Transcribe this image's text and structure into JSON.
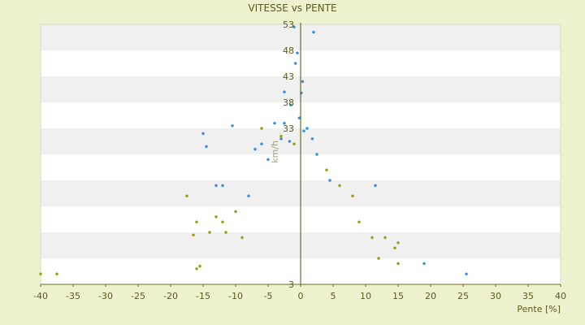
{
  "chart_data": {
    "type": "scatter",
    "title": "VITESSE vs PENTE",
    "xlabel": "Pente [%]",
    "ylabel": "km/h",
    "xlim": [
      -40,
      40
    ],
    "ylim": [
      3,
      53
    ],
    "xticks": [
      -40,
      -35,
      -30,
      -25,
      -20,
      -15,
      -10,
      -5,
      0,
      5,
      10,
      15,
      20,
      25,
      30,
      35,
      40
    ],
    "yticks": [
      3,
      8,
      13,
      18,
      23,
      28,
      33,
      38,
      43,
      48,
      53
    ],
    "ytick_labels": [
      "3",
      "",
      "",
      "",
      "",
      "",
      "33",
      "38",
      "43",
      "48",
      "53"
    ],
    "grid": "horizontal alternating bands",
    "legend": "none",
    "colors": {
      "background": "#eef2cf",
      "plot_band_light": "#ffffff",
      "plot_band_dark": "#f0f0f0",
      "series_blue": "#3b8fd9",
      "series_olive": "#9aa010",
      "axis": "#6b6b2a",
      "text": "#5a5a1a"
    },
    "series": [
      {
        "color": "#3b8fd9",
        "points": [
          [
            -1,
            52.5
          ],
          [
            2,
            51.5
          ],
          [
            -0.5,
            47.5
          ],
          [
            -0.8,
            45.5
          ],
          [
            0.3,
            42
          ],
          [
            0.1,
            39.8
          ],
          [
            -2.5,
            40
          ],
          [
            -10.5,
            33.5
          ],
          [
            -15,
            32
          ],
          [
            -14.5,
            29.5
          ],
          [
            -1.5,
            37.5
          ],
          [
            -0.2,
            35
          ],
          [
            -2.5,
            34
          ],
          [
            1,
            33
          ],
          [
            19,
            7
          ],
          [
            25.5,
            5
          ],
          [
            -4,
            34
          ],
          [
            4.5,
            23
          ],
          [
            11.5,
            22
          ],
          [
            -8,
            20
          ],
          [
            -12,
            22
          ],
          [
            -13,
            22
          ],
          [
            -7,
            29
          ],
          [
            -6,
            30
          ],
          [
            -3,
            31
          ],
          [
            1.8,
            31
          ],
          [
            0.5,
            32.5
          ],
          [
            -1.7,
            30.5
          ],
          [
            2.5,
            28
          ],
          [
            -5,
            27
          ]
        ]
      },
      {
        "color": "#9aa010",
        "points": [
          [
            -40,
            5
          ],
          [
            -37.5,
            5
          ],
          [
            -17.5,
            20
          ],
          [
            -16,
            15
          ],
          [
            -16.5,
            12.5
          ],
          [
            -16,
            6
          ],
          [
            -15.5,
            6.5
          ],
          [
            -14,
            13
          ],
          [
            -13,
            16
          ],
          [
            -11.5,
            13
          ],
          [
            -10,
            17
          ],
          [
            15,
            7
          ],
          [
            14.5,
            10
          ],
          [
            -6,
            33
          ],
          [
            -3,
            31.5
          ],
          [
            -1,
            30
          ],
          [
            6,
            22
          ],
          [
            8,
            20
          ],
          [
            11,
            12
          ],
          [
            13,
            12
          ],
          [
            15,
            11
          ],
          [
            4,
            25
          ],
          [
            -12,
            15
          ],
          [
            -9,
            12
          ],
          [
            12,
            8
          ],
          [
            9,
            15
          ]
        ]
      }
    ]
  }
}
